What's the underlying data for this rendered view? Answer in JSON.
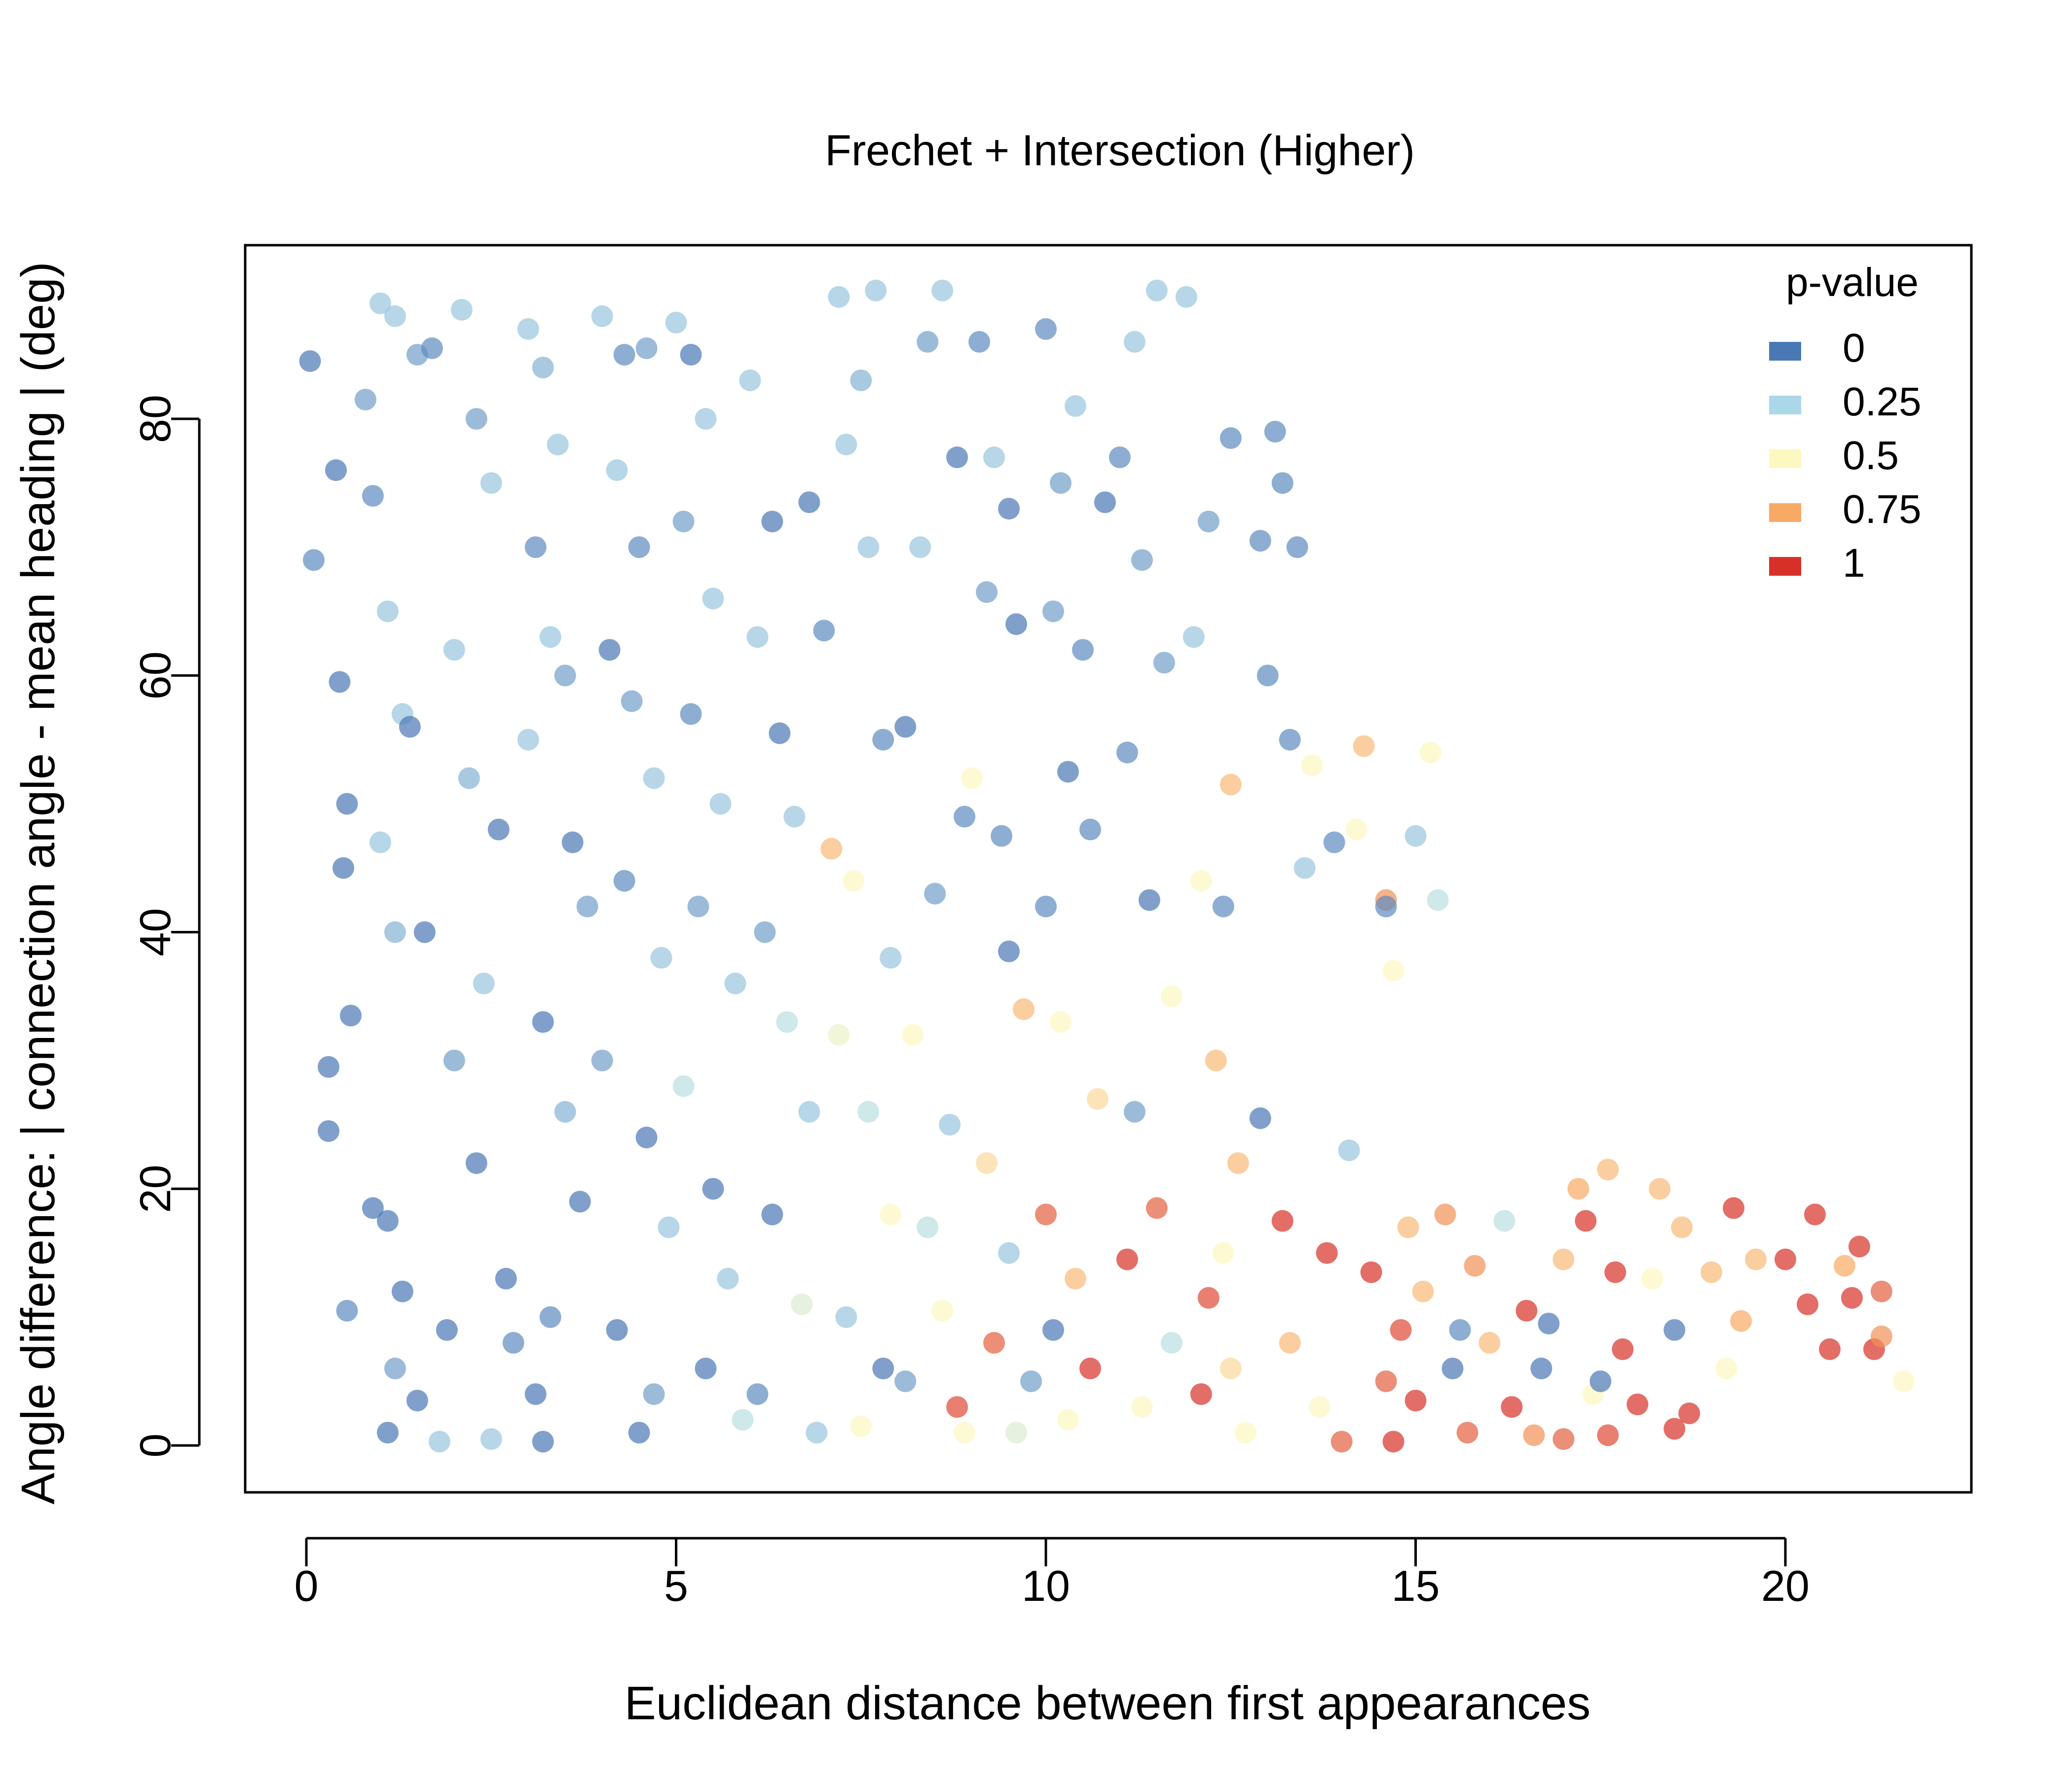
{
  "chart_data": {
    "type": "scatter",
    "title": "Frechet + Intersection (Higher)",
    "xlabel": "Euclidean distance between first appearances",
    "ylabel": "Angle difference: | connection angle - mean heading | (deg)",
    "xlim": [
      -0.8,
      22.5
    ],
    "ylim": [
      -3.5,
      94
    ],
    "xticks": [
      "0",
      "5",
      "10",
      "15",
      "20"
    ],
    "yticks": [
      "0",
      "20",
      "40",
      "60",
      "80"
    ],
    "grid": false,
    "legend": {
      "title": "p-value",
      "placement": "top-right",
      "entries": [
        {
          "label": "0",
          "color": "#4a78b5"
        },
        {
          "label": "0.25",
          "color": "#abd8e8"
        },
        {
          "label": "0.5",
          "color": "#fcf8c0"
        },
        {
          "label": "0.75",
          "color": "#f8a963"
        },
        {
          "label": "1",
          "color": "#d73027"
        }
      ]
    },
    "color_scale": [
      "#4a78b5",
      "#abd8e8",
      "#fcf8c0",
      "#f8a963",
      "#d73027"
    ],
    "points": [
      [
        0.05,
        84.5,
        0.0
      ],
      [
        0.1,
        69,
        0.05
      ],
      [
        0.3,
        24.5,
        0.0
      ],
      [
        0.3,
        29.5,
        0.0
      ],
      [
        0.45,
        59.5,
        0.0
      ],
      [
        0.55,
        50,
        0.0
      ],
      [
        0.5,
        45,
        0.0
      ],
      [
        0.4,
        76,
        0.0
      ],
      [
        0.6,
        33.5,
        0.0
      ],
      [
        0.55,
        10.5,
        0.05
      ],
      [
        0.8,
        81.5,
        0.1
      ],
      [
        0.9,
        74,
        0.05
      ],
      [
        1.0,
        89,
        0.2
      ],
      [
        1.2,
        88,
        0.2
      ],
      [
        1.5,
        85,
        0.1
      ],
      [
        1.7,
        85.5,
        0.05
      ],
      [
        1.1,
        65,
        0.2
      ],
      [
        1.3,
        57,
        0.2
      ],
      [
        1.4,
        56,
        0.0
      ],
      [
        1.0,
        47,
        0.2
      ],
      [
        1.2,
        40,
        0.15
      ],
      [
        1.6,
        40,
        0.0
      ],
      [
        0.9,
        18.5,
        0.0
      ],
      [
        1.1,
        17.5,
        0.0
      ],
      [
        1.3,
        12,
        0.0
      ],
      [
        1.2,
        6,
        0.1
      ],
      [
        1.5,
        3.5,
        0.0
      ],
      [
        1.8,
        0.3,
        0.2
      ],
      [
        1.1,
        1,
        0.0
      ],
      [
        1.9,
        9,
        0.0
      ],
      [
        2.1,
        88.5,
        0.2
      ],
      [
        2.3,
        80,
        0.1
      ],
      [
        2.5,
        75,
        0.2
      ],
      [
        2.0,
        62,
        0.2
      ],
      [
        2.2,
        52,
        0.15
      ],
      [
        2.6,
        48,
        0.0
      ],
      [
        2.4,
        36,
        0.2
      ],
      [
        2.0,
        30,
        0.1
      ],
      [
        2.3,
        22,
        0.0
      ],
      [
        2.7,
        13,
        0.0
      ],
      [
        2.8,
        8,
        0.05
      ],
      [
        2.5,
        0.5,
        0.2
      ],
      [
        3.0,
        87,
        0.2
      ],
      [
        3.2,
        84,
        0.15
      ],
      [
        3.4,
        78,
        0.2
      ],
      [
        3.1,
        70,
        0.05
      ],
      [
        3.3,
        63,
        0.2
      ],
      [
        3.5,
        60,
        0.1
      ],
      [
        3.0,
        55,
        0.2
      ],
      [
        3.6,
        47,
        0.0
      ],
      [
        3.8,
        42,
        0.1
      ],
      [
        3.2,
        33,
        0.0
      ],
      [
        3.5,
        26,
        0.15
      ],
      [
        3.7,
        19,
        0.0
      ],
      [
        3.3,
        10,
        0.05
      ],
      [
        3.1,
        4,
        0.0
      ],
      [
        3.2,
        0.3,
        0.0
      ],
      [
        4.0,
        88,
        0.2
      ],
      [
        4.3,
        85,
        0.05
      ],
      [
        4.6,
        85.5,
        0.1
      ],
      [
        4.2,
        76,
        0.2
      ],
      [
        4.5,
        70,
        0.05
      ],
      [
        4.1,
        62,
        0.0
      ],
      [
        4.4,
        58,
        0.1
      ],
      [
        4.7,
        52,
        0.2
      ],
      [
        4.3,
        44,
        0.05
      ],
      [
        4.8,
        38,
        0.2
      ],
      [
        4.0,
        30,
        0.1
      ],
      [
        4.6,
        24,
        0.0
      ],
      [
        4.9,
        17,
        0.2
      ],
      [
        4.2,
        9,
        0.0
      ],
      [
        4.7,
        4,
        0.1
      ],
      [
        4.5,
        1,
        0.0
      ],
      [
        5.0,
        87.5,
        0.2
      ],
      [
        5.2,
        85,
        0.0
      ],
      [
        5.4,
        80,
        0.2
      ],
      [
        5.1,
        72,
        0.1
      ],
      [
        5.5,
        66,
        0.2
      ],
      [
        5.2,
        57,
        0.05
      ],
      [
        5.6,
        50,
        0.2
      ],
      [
        5.3,
        42,
        0.1
      ],
      [
        5.8,
        36,
        0.2
      ],
      [
        5.1,
        28,
        0.3
      ],
      [
        5.5,
        20,
        0.0
      ],
      [
        5.7,
        13,
        0.2
      ],
      [
        5.4,
        6,
        0.0
      ],
      [
        5.9,
        2,
        0.3
      ],
      [
        6.0,
        83,
        0.2
      ],
      [
        6.3,
        72,
        0.0
      ],
      [
        6.1,
        63,
        0.2
      ],
      [
        6.4,
        55.5,
        0.0
      ],
      [
        6.6,
        49,
        0.2
      ],
      [
        6.2,
        40,
        0.1
      ],
      [
        6.5,
        33,
        0.3
      ],
      [
        6.8,
        26,
        0.2
      ],
      [
        6.3,
        18,
        0.0
      ],
      [
        6.7,
        11,
        0.4
      ],
      [
        6.1,
        4,
        0.05
      ],
      [
        6.9,
        1,
        0.2
      ],
      [
        6.8,
        73.5,
        0.0
      ],
      [
        7.2,
        89.5,
        0.2
      ],
      [
        7.5,
        83,
        0.15
      ],
      [
        7.7,
        90,
        0.2
      ],
      [
        7.0,
        63.5,
        0.05
      ],
      [
        7.3,
        78,
        0.2
      ],
      [
        7.6,
        70,
        0.2
      ],
      [
        7.8,
        55,
        0.05
      ],
      [
        7.1,
        46.5,
        0.7
      ],
      [
        7.4,
        44,
        0.5
      ],
      [
        7.9,
        38,
        0.2
      ],
      [
        7.2,
        32,
        0.45
      ],
      [
        7.6,
        26,
        0.3
      ],
      [
        7.9,
        18,
        0.5
      ],
      [
        7.3,
        10,
        0.2
      ],
      [
        7.8,
        6,
        0.0
      ],
      [
        7.5,
        1.5,
        0.5
      ],
      [
        8.1,
        56,
        0.0
      ],
      [
        8.4,
        86,
        0.1
      ],
      [
        8.6,
        90,
        0.2
      ],
      [
        8.8,
        77,
        0.0
      ],
      [
        8.3,
        70,
        0.2
      ],
      [
        8.9,
        49,
        0.05
      ],
      [
        8.5,
        43,
        0.1
      ],
      [
        8.2,
        32,
        0.5
      ],
      [
        8.7,
        25,
        0.2
      ],
      [
        8.4,
        17,
        0.3
      ],
      [
        8.6,
        10.5,
        0.5
      ],
      [
        8.1,
        5,
        0.1
      ],
      [
        8.8,
        3,
        0.95
      ],
      [
        8.9,
        1,
        0.5
      ],
      [
        9.1,
        86,
        0.05
      ],
      [
        9.3,
        77,
        0.2
      ],
      [
        9.5,
        73,
        0.0
      ],
      [
        9.2,
        66.5,
        0.1
      ],
      [
        9.6,
        64,
        0.0
      ],
      [
        9.4,
        47.5,
        0.05
      ],
      [
        9.0,
        52,
        0.5
      ],
      [
        9.5,
        38.5,
        0.0
      ],
      [
        9.7,
        34,
        0.7
      ],
      [
        9.2,
        22,
        0.6
      ],
      [
        9.5,
        15,
        0.2
      ],
      [
        9.3,
        8,
        0.9
      ],
      [
        9.8,
        5,
        0.1
      ],
      [
        9.6,
        1,
        0.4
      ],
      [
        10.0,
        87,
        0.05
      ],
      [
        10.2,
        75,
        0.1
      ],
      [
        10.4,
        81,
        0.2
      ],
      [
        10.1,
        65,
        0.1
      ],
      [
        10.5,
        62,
        0.05
      ],
      [
        10.3,
        52.5,
        0.0
      ],
      [
        10.0,
        42,
        0.05
      ],
      [
        10.6,
        48,
        0.05
      ],
      [
        10.2,
        33,
        0.5
      ],
      [
        10.7,
        27,
        0.6
      ],
      [
        10.0,
        18,
        0.9
      ],
      [
        10.4,
        13,
        0.7
      ],
      [
        10.1,
        9,
        0.0
      ],
      [
        10.6,
        6,
        1.0
      ],
      [
        10.3,
        2,
        0.5
      ],
      [
        10.8,
        73.5,
        0.0
      ],
      [
        11.0,
        77,
        0.05
      ],
      [
        11.2,
        86,
        0.2
      ],
      [
        11.5,
        90,
        0.2
      ],
      [
        11.3,
        69,
        0.1
      ],
      [
        11.6,
        61,
        0.1
      ],
      [
        11.1,
        54,
        0.05
      ],
      [
        11.4,
        42.5,
        0.0
      ],
      [
        11.7,
        35,
        0.5
      ],
      [
        11.2,
        26,
        0.1
      ],
      [
        11.5,
        18.5,
        0.9
      ],
      [
        11.1,
        14.5,
        1.0
      ],
      [
        11.7,
        8,
        0.3
      ],
      [
        11.3,
        3,
        0.5
      ],
      [
        11.9,
        89.5,
        0.2
      ],
      [
        12.0,
        63,
        0.2
      ],
      [
        12.2,
        72,
        0.1
      ],
      [
        12.4,
        42,
        0.05
      ],
      [
        12.1,
        44,
        0.5
      ],
      [
        12.5,
        51.5,
        0.7
      ],
      [
        12.3,
        30,
        0.7
      ],
      [
        12.6,
        22,
        0.7
      ],
      [
        12.4,
        15,
        0.5
      ],
      [
        12.2,
        11.5,
        0.95
      ],
      [
        12.5,
        6,
        0.6
      ],
      [
        12.1,
        4,
        1.0
      ],
      [
        12.7,
        1,
        0.5
      ],
      [
        12.5,
        78.5,
        0.05
      ],
      [
        12.9,
        70.5,
        0.05
      ],
      [
        13.1,
        79,
        0.05
      ],
      [
        13.2,
        75,
        0.05
      ],
      [
        13.0,
        60,
        0.05
      ],
      [
        13.3,
        55,
        0.05
      ],
      [
        12.9,
        25.5,
        0.0
      ],
      [
        13.2,
        17.5,
        1.0
      ],
      [
        13.5,
        45,
        0.2
      ],
      [
        13.4,
        70,
        0.05
      ],
      [
        13.6,
        53,
        0.5
      ],
      [
        13.8,
        15,
        1.0
      ],
      [
        13.3,
        8,
        0.7
      ],
      [
        13.7,
        3,
        0.5
      ],
      [
        13.9,
        47,
        0.05
      ],
      [
        14.1,
        23,
        0.2
      ],
      [
        14.3,
        54.5,
        0.7
      ],
      [
        14.2,
        48,
        0.5
      ],
      [
        14.4,
        13.5,
        1.0
      ],
      [
        14.0,
        0.3,
        0.9
      ],
      [
        14.6,
        42.5,
        0.8
      ],
      [
        14.6,
        42,
        0.05
      ],
      [
        14.7,
        37,
        0.5
      ],
      [
        14.9,
        17,
        0.7
      ],
      [
        14.8,
        9,
        0.95
      ],
      [
        14.6,
        5,
        0.9
      ],
      [
        14.7,
        0.3,
        1.0
      ],
      [
        15.0,
        47.5,
        0.2
      ],
      [
        15.2,
        54,
        0.5
      ],
      [
        15.3,
        42.5,
        0.3
      ],
      [
        15.1,
        12,
        0.7
      ],
      [
        15.0,
        3.5,
        1.0
      ],
      [
        15.4,
        18,
        0.8
      ],
      [
        15.6,
        9,
        0.05
      ],
      [
        15.8,
        14,
        0.8
      ],
      [
        15.5,
        6,
        0.0
      ],
      [
        15.7,
        1,
        0.9
      ],
      [
        16.0,
        8,
        0.7
      ],
      [
        16.2,
        17.5,
        0.3
      ],
      [
        16.3,
        3,
        1.0
      ],
      [
        16.5,
        10.5,
        1.0
      ],
      [
        16.6,
        0.8,
        0.8
      ],
      [
        16.7,
        6,
        0.0
      ],
      [
        16.8,
        9.5,
        0.0
      ],
      [
        17.0,
        14.5,
        0.7
      ],
      [
        17.2,
        20,
        0.75
      ],
      [
        17.3,
        17.5,
        1.0
      ],
      [
        17.0,
        0.5,
        0.9
      ],
      [
        17.4,
        4,
        0.5
      ],
      [
        17.5,
        5,
        0.0
      ],
      [
        17.6,
        21.5,
        0.7
      ],
      [
        17.7,
        13.5,
        1.0
      ],
      [
        17.8,
        7.5,
        1.0
      ],
      [
        17.6,
        0.8,
        0.95
      ],
      [
        18.0,
        3.2,
        1.0
      ],
      [
        18.2,
        13,
        0.5
      ],
      [
        18.3,
        20,
        0.7
      ],
      [
        18.5,
        9,
        0.0
      ],
      [
        18.6,
        17,
        0.7
      ],
      [
        18.7,
        2.5,
        1.0
      ],
      [
        18.5,
        1.3,
        1.0
      ],
      [
        19.0,
        13.5,
        0.7
      ],
      [
        19.3,
        18.5,
        1.0
      ],
      [
        19.4,
        9.7,
        0.75
      ],
      [
        19.2,
        6,
        0.5
      ],
      [
        19.6,
        14.5,
        0.7
      ],
      [
        20.0,
        14.5,
        1.0
      ],
      [
        20.3,
        11,
        1.0
      ],
      [
        20.4,
        18,
        1.0
      ],
      [
        20.6,
        7.5,
        1.0
      ],
      [
        20.8,
        14,
        0.75
      ],
      [
        20.9,
        11.5,
        1.0
      ],
      [
        21.0,
        15.5,
        1.0
      ],
      [
        21.2,
        7.5,
        1.0
      ],
      [
        21.3,
        12,
        0.9
      ],
      [
        21.3,
        8.5,
        0.8
      ],
      [
        21.6,
        5,
        0.5
      ]
    ]
  }
}
